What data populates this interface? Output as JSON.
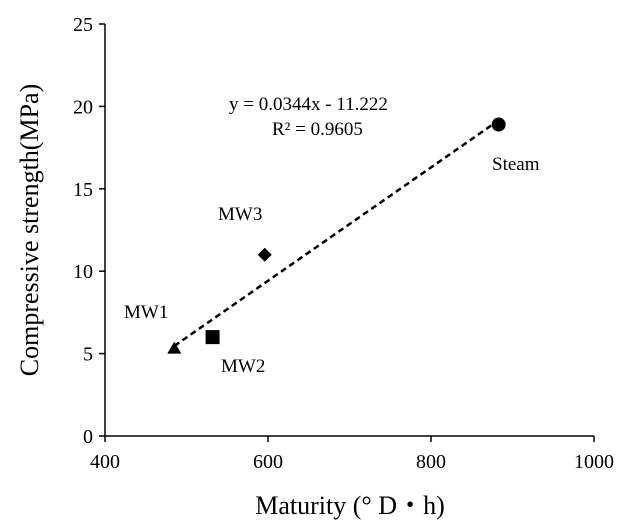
{
  "chart_data": {
    "type": "scatter",
    "xlabel": "Maturity (° D・h)",
    "ylabel": "Compressive strength(MPa)",
    "xlim": [
      400,
      1000
    ],
    "ylim": [
      0,
      25
    ],
    "xticks": [
      "400",
      "600",
      "800",
      "1000"
    ],
    "yticks": [
      "0",
      "5",
      "10",
      "15",
      "20",
      "25"
    ],
    "grid": false,
    "points": [
      {
        "label": "MW1",
        "x": 485,
        "y": 5.3,
        "marker": "triangle"
      },
      {
        "label": "MW2",
        "x": 532,
        "y": 6.0,
        "marker": "square"
      },
      {
        "label": "MW3",
        "x": 596,
        "y": 11.0,
        "marker": "diamond"
      },
      {
        "label": "Steam",
        "x": 883,
        "y": 18.9,
        "marker": "circle"
      }
    ],
    "trendline": {
      "type": "linear",
      "slope": 0.0344,
      "intercept": -11.222,
      "x_range": [
        485,
        883
      ],
      "style": "dashed",
      "equation": "y = 0.0344x - 11.222",
      "r_squared": "R² = 0.9605"
    },
    "colors": {
      "markers": "#000000",
      "line": "#000000"
    }
  }
}
